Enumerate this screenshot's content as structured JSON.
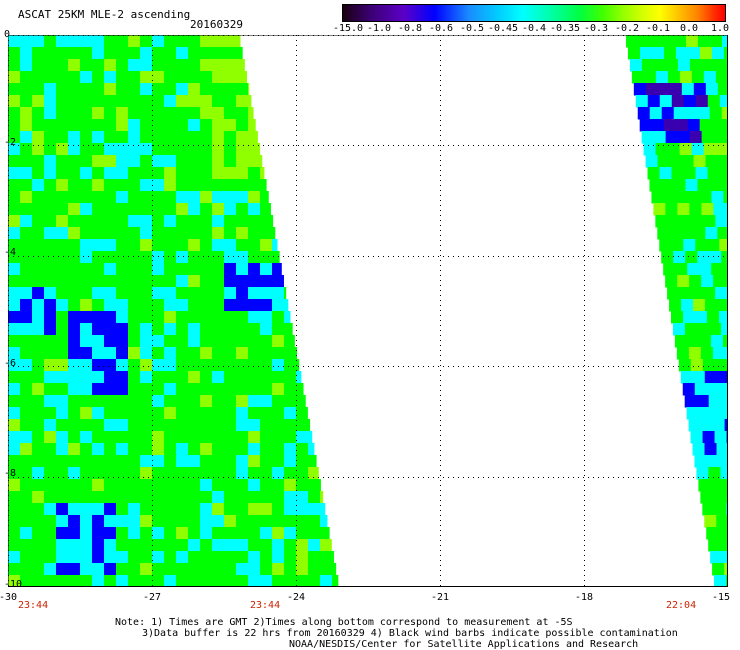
{
  "header": {
    "title": "ASCAT 25KM MLE-2 ascending",
    "date": "20160329"
  },
  "colorbar": {
    "labels": [
      "-15.0",
      "-1.0",
      "-0.8",
      "-0.6",
      "-0.5",
      "-0.45",
      "-0.4",
      "-0.35",
      "-0.3",
      "-0.2",
      "-0.1",
      "0.0",
      "1.0"
    ]
  },
  "map": {
    "y_ticks": [
      "0",
      "-2",
      "-4",
      "-6",
      "-8",
      "-10"
    ],
    "x_ticks": [
      "-30",
      "-27",
      "-24",
      "-21",
      "-18",
      "-15"
    ],
    "lon_range": [
      -30,
      -15
    ],
    "lat_range": [
      -10,
      0
    ],
    "grid": "dotted",
    "times": [
      "23:44",
      "23:44",
      "22:04"
    ],
    "colors": {
      "green": "#00ff00",
      "lime": "#90ff00",
      "cyan": "#00ffff",
      "blue": "#0000ff",
      "indigo": "#3a00b0"
    }
  },
  "footer": {
    "line1": "Note: 1) Times are GMT 2)Times along bottom correspond to measurement at -5S",
    "line2": "3)Data buffer is 22 hrs from 20160329 4) Black wind barbs indicate possible contamination",
    "line3": "NOAA/NESDIS/Center for Satellite Applications and Research"
  }
}
